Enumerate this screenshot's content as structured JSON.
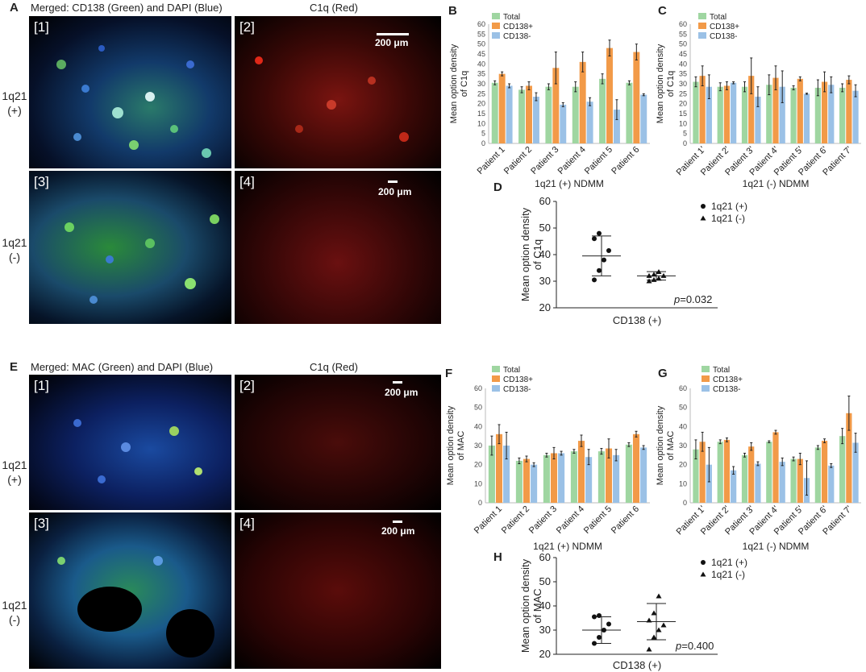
{
  "colors": {
    "total": "#9fd6a1",
    "cd138pos": "#f29a48",
    "cd138neg": "#9bc1e6"
  },
  "section_top": {
    "letter": "A",
    "merged_title": "Merged: CD138 (Green) and DAPI (Blue)",
    "red_title": "C1q (Red)",
    "row1_label": [
      "1q21",
      "(+)"
    ],
    "row2_label": [
      "1q21",
      "(-)"
    ],
    "tags": [
      "[1]",
      "[2]",
      "[3]",
      "[4]"
    ],
    "scale": "200 μm"
  },
  "section_bottom": {
    "letter": "E",
    "merged_title": "Merged: MAC (Green) and DAPI (Blue)",
    "red_title": "C1q (Red)",
    "row1_label": [
      "1q21",
      "(+)"
    ],
    "row2_label": [
      "1q21",
      "(-)"
    ],
    "tags": [
      "[1]",
      "[2]",
      "[3]",
      "[4]"
    ],
    "scale": "200 μm"
  },
  "chart_data": [
    {
      "id": "B",
      "type": "bar",
      "ylabel": "Mean option density of C1q",
      "xlabel": "1q21 (+) NDMM",
      "ylim": [
        0,
        60
      ],
      "yticks": [
        0,
        5,
        10,
        15,
        20,
        25,
        30,
        35,
        40,
        45,
        50,
        55,
        60
      ],
      "categories": [
        "Patient 1",
        "Patient 2",
        "Patient 3",
        "Patient 4",
        "Patient 5",
        "Patient 6"
      ],
      "legend": [
        "Total",
        "CD138+",
        "CD138-"
      ],
      "series": [
        {
          "name": "Total",
          "values": [
            30.5,
            27,
            28.5,
            28.5,
            32.5,
            30.5
          ],
          "errors": [
            1,
            1.5,
            1.5,
            2.5,
            2.5,
            1
          ]
        },
        {
          "name": "CD138+",
          "values": [
            35,
            29,
            38,
            41,
            48,
            46
          ],
          "errors": [
            1,
            2,
            8,
            5,
            4,
            4
          ]
        },
        {
          "name": "CD138-",
          "values": [
            29,
            23.5,
            19.5,
            21,
            17,
            24.5
          ],
          "errors": [
            1,
            2,
            1,
            2,
            5,
            0.5
          ]
        }
      ]
    },
    {
      "id": "C",
      "type": "bar",
      "ylabel": "Mean option density of C1q",
      "xlabel": "1q21 (-) NDMM",
      "ylim": [
        0,
        60
      ],
      "yticks": [
        0,
        5,
        10,
        15,
        20,
        25,
        30,
        35,
        40,
        45,
        50,
        55,
        60
      ],
      "categories": [
        "Patient 1'",
        "Patient 2'",
        "Patient 3'",
        "Patient 4'",
        "Patient 5'",
        "Patient 6'",
        "Patient 7'"
      ],
      "legend": [
        "Total",
        "CD138+",
        "CD138-"
      ],
      "series": [
        {
          "name": "Total",
          "values": [
            31,
            28.5,
            28.5,
            29.5,
            28,
            28,
            28
          ],
          "errors": [
            2.5,
            2,
            2.5,
            5,
            1,
            4,
            2
          ]
        },
        {
          "name": "CD138+",
          "values": [
            34,
            29,
            34,
            33,
            32.5,
            31,
            32
          ],
          "errors": [
            5,
            2,
            9,
            6,
            1,
            5,
            2
          ]
        },
        {
          "name": "CD138-",
          "values": [
            28.5,
            30.5,
            23.5,
            28.5,
            25,
            29.5,
            26.5
          ],
          "errors": [
            6,
            0.5,
            5,
            8,
            0.3,
            4,
            3
          ]
        }
      ]
    },
    {
      "id": "D",
      "type": "scatter",
      "ylabel": "Mean option density of C1q",
      "xlabel": "CD138 (+)",
      "ylim": [
        20,
        60
      ],
      "yticks": [
        20,
        30,
        40,
        50,
        60
      ],
      "legend": [
        "1q21 (+)",
        "1q21 (-)"
      ],
      "series": [
        {
          "name": "1q21 (+)",
          "marker": "circle",
          "values": [
            30.5,
            34,
            38,
            41.5,
            46,
            48
          ],
          "mean": 39.5,
          "sd": 7.5
        },
        {
          "name": "1q21 (-)",
          "marker": "triangle",
          "values": [
            30,
            30.5,
            31,
            32,
            32,
            32.5,
            33.5
          ],
          "mean": 32,
          "sd": 1.6
        }
      ],
      "annotation": {
        "p": "p",
        "rest": "=0.032"
      }
    },
    {
      "id": "F",
      "type": "bar",
      "ylabel": "Mean option density of MAC",
      "xlabel": "1q21 (+) NDMM",
      "ylim": [
        0,
        60
      ],
      "yticks": [
        0,
        10,
        20,
        30,
        40,
        50,
        60
      ],
      "categories": [
        "Patient 1",
        "Patient 2",
        "Patient 3",
        "Patient 4",
        "Patient 5",
        "Patient 6"
      ],
      "legend": [
        "Total",
        "CD138+",
        "CD138-"
      ],
      "series": [
        {
          "name": "Total",
          "values": [
            30,
            22,
            25,
            27,
            27,
            30.5
          ],
          "errors": [
            5,
            1.5,
            1,
            1,
            1.5,
            1
          ]
        },
        {
          "name": "CD138+",
          "values": [
            36,
            23,
            26,
            32.5,
            28.5,
            36
          ],
          "errors": [
            5,
            1.5,
            3,
            3,
            5,
            1.5
          ]
        },
        {
          "name": "CD138-",
          "values": [
            30,
            20,
            26,
            24,
            25,
            29
          ],
          "errors": [
            7,
            1,
            1,
            4,
            3,
            1
          ]
        }
      ]
    },
    {
      "id": "G",
      "type": "bar",
      "ylabel": "Mean option density of MAC",
      "xlabel": "1q21 (-) NDMM",
      "ylim": [
        0,
        60
      ],
      "yticks": [
        0,
        10,
        20,
        30,
        40,
        50,
        60
      ],
      "categories": [
        "Patient 1'",
        "Patient 2'",
        "Patient 3'",
        "Patient 4'",
        "Patient 5'",
        "Patient 6'",
        "Patient 7'"
      ],
      "legend": [
        "Total",
        "CD138+",
        "CD138-"
      ],
      "series": [
        {
          "name": "Total",
          "values": [
            28,
            32,
            25,
            32,
            23,
            29,
            35
          ],
          "errors": [
            5,
            1,
            1,
            0.5,
            1,
            1,
            4
          ]
        },
        {
          "name": "CD138+",
          "values": [
            32,
            33,
            29.5,
            37,
            23,
            32.5,
            47
          ],
          "errors": [
            5,
            1,
            2,
            1,
            3,
            1,
            9
          ]
        },
        {
          "name": "CD138-",
          "values": [
            20,
            17,
            20.5,
            21.5,
            13,
            19.5,
            31.5
          ],
          "errors": [
            9,
            2,
            1,
            2,
            9,
            1,
            5
          ]
        }
      ]
    },
    {
      "id": "H",
      "type": "scatter",
      "ylabel": "Mean option density of MAC",
      "xlabel": "CD138 (+)",
      "ylim": [
        20,
        60
      ],
      "yticks": [
        20,
        30,
        40,
        50,
        60
      ],
      "legend": [
        "1q21 (+)",
        "1q21 (-)"
      ],
      "series": [
        {
          "name": "1q21 (+)",
          "marker": "circle",
          "values": [
            24.5,
            27,
            30,
            32.5,
            35.5,
            36
          ],
          "mean": 30,
          "sd": 5.5
        },
        {
          "name": "1q21 (-)",
          "marker": "triangle",
          "values": [
            22,
            27,
            30,
            32,
            34,
            37,
            44
          ],
          "mean": 33.5,
          "sd": 7.5
        }
      ],
      "annotation": {
        "p": "p",
        "rest": "=0.400"
      }
    }
  ]
}
